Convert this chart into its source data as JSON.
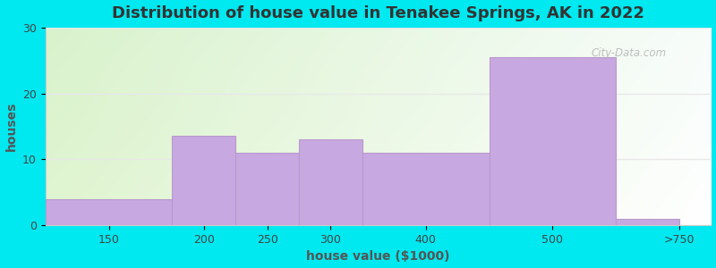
{
  "title": "Distribution of house value in Tenakee Springs, AK in 2022",
  "xlabel": "house value ($1000)",
  "ylabel": "houses",
  "categories": [
    "150",
    "200",
    "250",
    "300",
    "400",
    "500",
    ">750"
  ],
  "values": [
    4,
    13.5,
    11,
    13,
    11,
    25.5,
    1
  ],
  "bar_color": "#c8a8e0",
  "bar_edge_color": "#b898cc",
  "ylim": [
    0,
    30
  ],
  "yticks": [
    0,
    10,
    20,
    30
  ],
  "background_outer": "#00e8f0",
  "grid_color": "#e0e0e0",
  "title_fontsize": 13,
  "axis_label_fontsize": 10,
  "tick_fontsize": 9,
  "bar_left_edges": [
    0.0,
    1.0,
    1.5,
    2.0,
    2.5,
    3.5,
    4.5
  ],
  "bar_widths": [
    1.0,
    0.5,
    0.5,
    0.5,
    1.0,
    1.0,
    0.5
  ],
  "tick_positions": [
    0.5,
    1.25,
    1.75,
    2.25,
    3.0,
    4.0,
    5.0
  ],
  "xlim": [
    0.0,
    5.25
  ],
  "bg_colors": [
    "#d8f0cc",
    "#f0ffe8",
    "#e8fff0",
    "#f8fff5"
  ],
  "watermark": "City-Data.com"
}
